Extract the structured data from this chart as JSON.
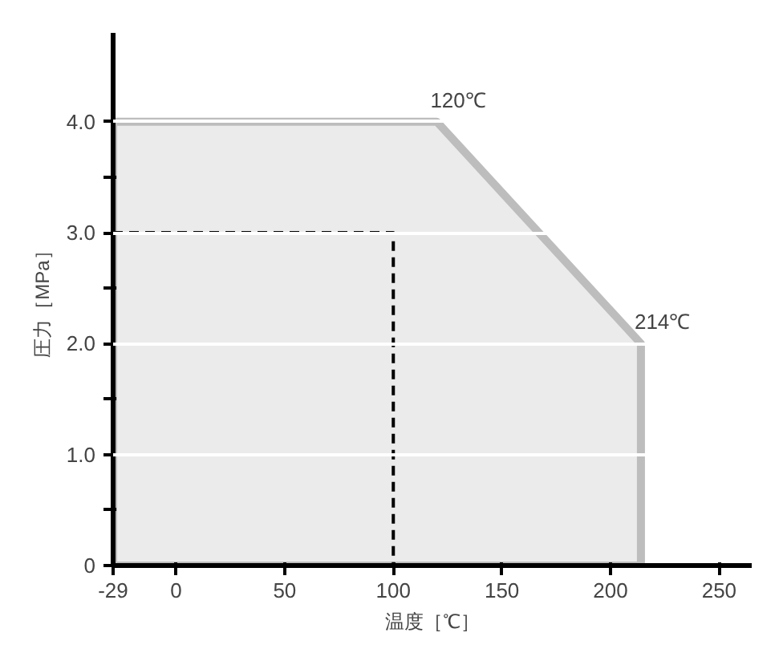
{
  "chart_data": {
    "type": "area",
    "xlabel": "温度［℃］",
    "ylabel": "圧力［MPa］",
    "series": [
      {
        "color": "#ebebeb",
        "x": [
          -29,
          120,
          214,
          214
        ],
        "values": [
          4,
          4,
          2,
          0
        ]
      },
      {
        "type": "line",
        "color": "#000000",
        "line_style": "dashed",
        "x": [
          -29,
          100,
          100
        ],
        "values": [
          3,
          3,
          0
        ]
      }
    ],
    "xlim": [
      -29,
      265
    ],
    "ylim": [
      0,
      4.8
    ],
    "xticks": [
      -29,
      0,
      50,
      100,
      150,
      200,
      250
    ],
    "yticks": [
      0,
      {
        "value": 0.5,
        "label": null
      },
      {
        "value": 1,
        "label": "1.0"
      },
      {
        "value": 1.5,
        "label": null
      },
      {
        "value": 2,
        "label": "2.0"
      },
      {
        "value": 2.5,
        "label": null
      },
      {
        "value": 3,
        "label": "3.0"
      },
      {
        "value": 3.5,
        "label": null
      },
      {
        "value": 4,
        "label": "4.0"
      }
    ],
    "grid": "y",
    "annotations": [
      {
        "text": "120℃",
        "x": 120,
        "y": 4
      },
      {
        "text": "214℃",
        "x": 214,
        "y": 2
      }
    ]
  }
}
